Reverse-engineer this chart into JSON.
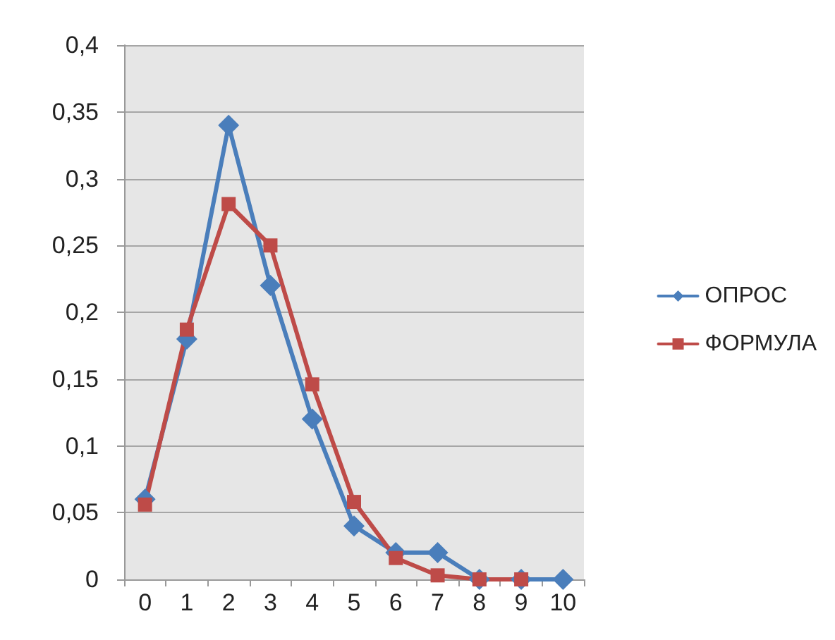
{
  "chart_data": {
    "type": "line",
    "categories": [
      "0",
      "1",
      "2",
      "3",
      "4",
      "5",
      "6",
      "7",
      "8",
      "9",
      "10"
    ],
    "series": [
      {
        "name": "ОПРОС",
        "color": "#4a7ebb",
        "marker": "diamond",
        "values": [
          0.06,
          0.18,
          0.34,
          0.22,
          0.12,
          0.04,
          0.02,
          0.02,
          0,
          0,
          0
        ]
      },
      {
        "name": "ФОРМУЛА",
        "color": "#be4b48",
        "marker": "square",
        "values": [
          0.056,
          0.187,
          0.281,
          0.25,
          0.146,
          0.058,
          0.016,
          0.003,
          0,
          0,
          null
        ]
      }
    ],
    "ylim": [
      0,
      0.4
    ],
    "yticks": [
      {
        "value": 0,
        "label": "0"
      },
      {
        "value": 0.05,
        "label": "0,05"
      },
      {
        "value": 0.1,
        "label": "0,1"
      },
      {
        "value": 0.15,
        "label": "0,15"
      },
      {
        "value": 0.2,
        "label": "0,2"
      },
      {
        "value": 0.25,
        "label": "0,25"
      },
      {
        "value": 0.3,
        "label": "0,3"
      },
      {
        "value": 0.35,
        "label": "0,35"
      },
      {
        "value": 0.4,
        "label": "0,4"
      }
    ],
    "grid": "y",
    "legend": "right",
    "line_style": "solid"
  }
}
